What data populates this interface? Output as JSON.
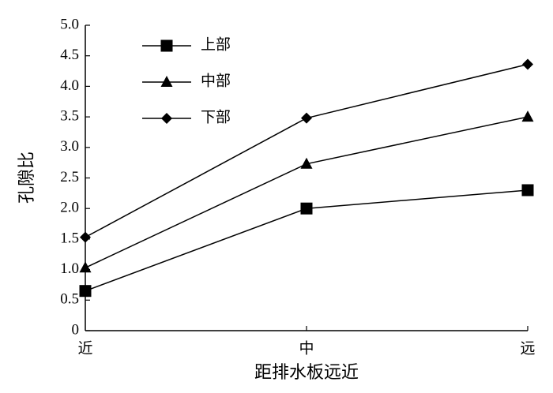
{
  "chart_data": {
    "type": "line",
    "x_label": "距排水板远近",
    "y_label": "孔隙比",
    "categories": [
      "近",
      "中",
      "远"
    ],
    "series": [
      {
        "name": "上部",
        "color": "#000000",
        "marker": "square",
        "values": [
          0.65,
          2.0,
          2.3
        ]
      },
      {
        "name": "中部",
        "color": "#000000",
        "marker": "triangle",
        "values": [
          1.03,
          2.73,
          3.5
        ]
      },
      {
        "name": "下部",
        "color": "#000000",
        "marker": "diamond",
        "values": [
          1.53,
          3.48,
          4.36
        ]
      }
    ],
    "ylim": [
      0,
      5
    ],
    "yticks": [
      0,
      0.5,
      {
        "value": 1,
        "label": "1.0"
      },
      1.5,
      {
        "value": 2,
        "label": "2.0"
      },
      2.5,
      {
        "value": 3,
        "label": "3.0"
      },
      3.5,
      {
        "value": 4,
        "label": "4.0"
      },
      4.5,
      {
        "value": 5,
        "label": "5.0"
      }
    ],
    "grid": false,
    "legend": "upper left"
  }
}
